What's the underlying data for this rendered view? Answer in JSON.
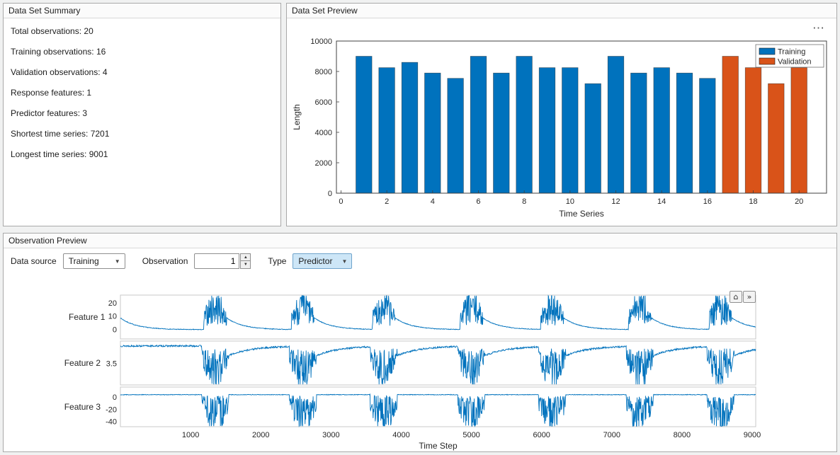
{
  "colors": {
    "training_blue": "#0072BD",
    "validation_orange": "#D95319",
    "signal_line": "#0072BD"
  },
  "icons": {
    "overflow": "⋯",
    "dropdown_arrow": "▼",
    "spinner_up": "▲",
    "spinner_down": "▼",
    "home": "⌂",
    "restore": "»"
  },
  "summary_panel": {
    "title": "Data Set Summary",
    "lines": [
      "Total observations: 20",
      "Training observations: 16",
      "Validation observations: 4",
      "Response features: 1",
      "Predictor features: 3",
      "Shortest time series: 7201",
      "Longest time series: 9001"
    ]
  },
  "preview_panel": {
    "title": "Data Set Preview"
  },
  "observation_panel": {
    "title": "Observation Preview",
    "controls": {
      "data_source_label": "Data source",
      "data_source_value": "Training",
      "observation_label": "Observation",
      "observation_value": "1",
      "type_label": "Type",
      "type_value": "Predictor"
    }
  },
  "chart_data": [
    {
      "type": "bar",
      "title": "",
      "xlabel": "Time Series",
      "ylabel": "Length",
      "x": [
        1,
        2,
        3,
        4,
        5,
        6,
        7,
        8,
        9,
        10,
        11,
        12,
        13,
        14,
        15,
        16,
        17,
        18,
        19,
        20
      ],
      "values": [
        9000,
        8250,
        8600,
        7900,
        7550,
        9000,
        7900,
        9000,
        8250,
        8250,
        7200,
        9000,
        7900,
        8250,
        7900,
        7550,
        9000,
        8250,
        7200,
        8250
      ],
      "training_count": 16,
      "series": [
        {
          "name": "Training",
          "color": "#0072BD",
          "bars": "1-16"
        },
        {
          "name": "Validation",
          "color": "#D95319",
          "bars": "17-20"
        }
      ],
      "legend": [
        "Training",
        "Validation"
      ],
      "legend_position": "top-right",
      "xlim": [
        -0.2,
        21.2
      ],
      "ylim": [
        0,
        10000
      ],
      "x_ticks": [
        0,
        2,
        4,
        6,
        8,
        10,
        12,
        14,
        16,
        18,
        20
      ],
      "y_ticks": [
        0,
        2000,
        4000,
        6000,
        8000,
        10000
      ],
      "grid": false
    },
    {
      "type": "line",
      "xlabel": "Time Step",
      "xlim": [
        0,
        9050
      ],
      "x_ticks": [
        1000,
        2000,
        3000,
        4000,
        5000,
        6000,
        7000,
        8000,
        9000
      ],
      "line_color": "#0072BD",
      "grid": false,
      "burst_centers": [
        1350,
        2600,
        3750,
        5000,
        6150,
        7400,
        8550
      ],
      "subplots": [
        {
          "label": "Feature 1",
          "ylim": [
            -7,
            26
          ],
          "y_ticks": [
            0,
            10,
            20
          ],
          "baseline": 0,
          "burst_peak": 25
        },
        {
          "label": "Feature 2",
          "ylim": [
            2.85,
            4.2
          ],
          "y_ticks": [
            3.5
          ],
          "baseline": 4.05,
          "burst_peak": 3.0
        },
        {
          "label": "Feature 3",
          "ylim": [
            -48,
            17
          ],
          "y_ticks": [
            -40,
            -20,
            0
          ],
          "baseline": 4.5,
          "burst_peak": -46
        }
      ]
    }
  ]
}
